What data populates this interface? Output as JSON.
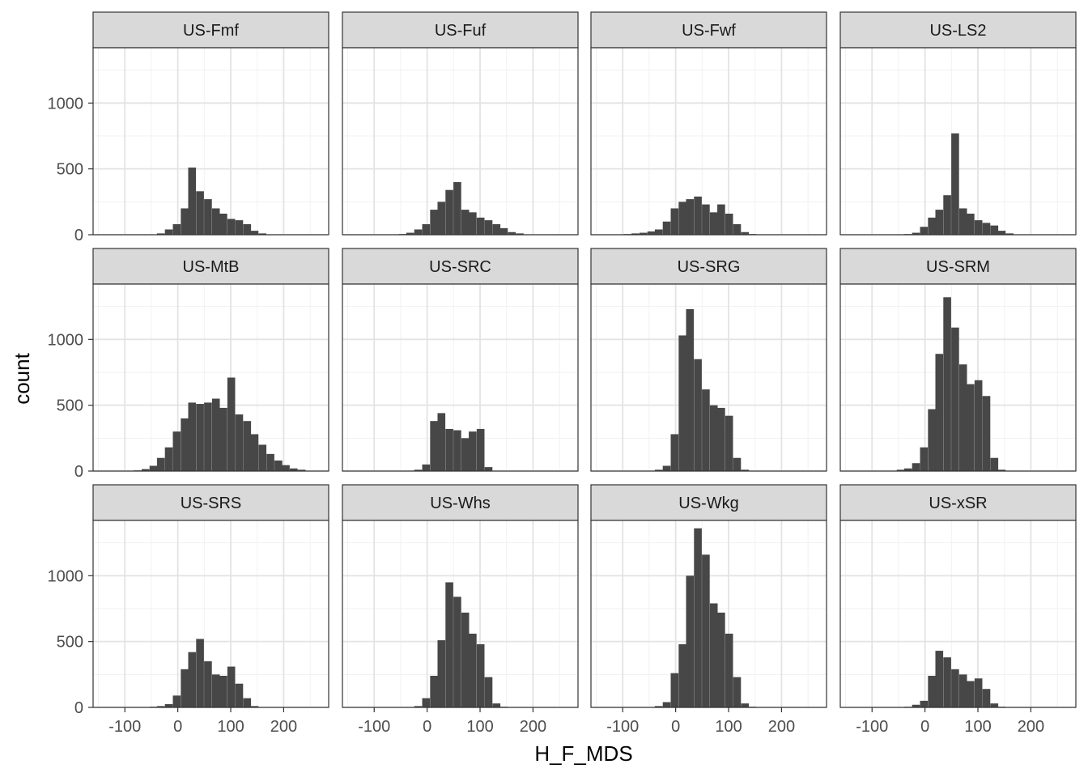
{
  "chart_data": {
    "type": "bar",
    "chart_kind": "faceted-histogram",
    "xlabel": "H_F_MDS",
    "ylabel": "count",
    "xlim": [
      -160,
      285
    ],
    "ylim": [
      0,
      1420
    ],
    "x_ticks": [
      -100,
      0,
      100,
      200
    ],
    "x_tick_labels": [
      "-100",
      "0",
      "100",
      "200"
    ],
    "y_ticks": [
      0,
      500,
      1000
    ],
    "y_tick_labels": [
      "0",
      "500",
      "1000"
    ],
    "grid": true,
    "theme": "bw",
    "bin_width": 14.7,
    "bar_color": "#474747",
    "strip_fill": "#d9d9d9",
    "panel_border": "#333333",
    "layout": {
      "rows": 3,
      "cols": 4
    },
    "facets": [
      {
        "name": "US-Fmf",
        "bins": [
          {
            "x": -32,
            "y": 10
          },
          {
            "x": -17,
            "y": 40
          },
          {
            "x": -2,
            "y": 80
          },
          {
            "x": 13,
            "y": 200
          },
          {
            "x": 27,
            "y": 510
          },
          {
            "x": 42,
            "y": 330
          },
          {
            "x": 57,
            "y": 270
          },
          {
            "x": 72,
            "y": 200
          },
          {
            "x": 86,
            "y": 160
          },
          {
            "x": 101,
            "y": 120
          },
          {
            "x": 116,
            "y": 110
          },
          {
            "x": 131,
            "y": 80
          },
          {
            "x": 145,
            "y": 30
          },
          {
            "x": 160,
            "y": 10
          }
        ]
      },
      {
        "name": "US-Fuf",
        "bins": [
          {
            "x": -46,
            "y": 5
          },
          {
            "x": -32,
            "y": 15
          },
          {
            "x": -17,
            "y": 40
          },
          {
            "x": -2,
            "y": 80
          },
          {
            "x": 13,
            "y": 190
          },
          {
            "x": 27,
            "y": 250
          },
          {
            "x": 42,
            "y": 340
          },
          {
            "x": 57,
            "y": 400
          },
          {
            "x": 72,
            "y": 190
          },
          {
            "x": 86,
            "y": 170
          },
          {
            "x": 101,
            "y": 130
          },
          {
            "x": 116,
            "y": 110
          },
          {
            "x": 131,
            "y": 80
          },
          {
            "x": 145,
            "y": 50
          },
          {
            "x": 160,
            "y": 20
          },
          {
            "x": 175,
            "y": 10
          }
        ]
      },
      {
        "name": "US-Fwf",
        "bins": [
          {
            "x": -91,
            "y": 5
          },
          {
            "x": -76,
            "y": 10
          },
          {
            "x": -61,
            "y": 15
          },
          {
            "x": -46,
            "y": 25
          },
          {
            "x": -32,
            "y": 40
          },
          {
            "x": -17,
            "y": 100
          },
          {
            "x": -2,
            "y": 200
          },
          {
            "x": 13,
            "y": 250
          },
          {
            "x": 27,
            "y": 270
          },
          {
            "x": 42,
            "y": 290
          },
          {
            "x": 57,
            "y": 230
          },
          {
            "x": 72,
            "y": 170
          },
          {
            "x": 86,
            "y": 230
          },
          {
            "x": 101,
            "y": 160
          },
          {
            "x": 116,
            "y": 80
          },
          {
            "x": 131,
            "y": 20
          },
          {
            "x": 145,
            "y": 5
          }
        ]
      },
      {
        "name": "US-LS2",
        "bins": [
          {
            "x": -32,
            "y": 5
          },
          {
            "x": -17,
            "y": 15
          },
          {
            "x": -2,
            "y": 60
          },
          {
            "x": 13,
            "y": 130
          },
          {
            "x": 27,
            "y": 190
          },
          {
            "x": 42,
            "y": 300
          },
          {
            "x": 57,
            "y": 770
          },
          {
            "x": 72,
            "y": 200
          },
          {
            "x": 86,
            "y": 160
          },
          {
            "x": 101,
            "y": 110
          },
          {
            "x": 116,
            "y": 90
          },
          {
            "x": 131,
            "y": 70
          },
          {
            "x": 145,
            "y": 30
          },
          {
            "x": 160,
            "y": 10
          }
        ]
      },
      {
        "name": "US-MtB",
        "bins": [
          {
            "x": -76,
            "y": 5
          },
          {
            "x": -61,
            "y": 15
          },
          {
            "x": -46,
            "y": 40
          },
          {
            "x": -32,
            "y": 100
          },
          {
            "x": -17,
            "y": 180
          },
          {
            "x": -2,
            "y": 300
          },
          {
            "x": 13,
            "y": 400
          },
          {
            "x": 27,
            "y": 520
          },
          {
            "x": 42,
            "y": 510
          },
          {
            "x": 57,
            "y": 520
          },
          {
            "x": 72,
            "y": 550
          },
          {
            "x": 86,
            "y": 480
          },
          {
            "x": 101,
            "y": 710
          },
          {
            "x": 116,
            "y": 430
          },
          {
            "x": 131,
            "y": 380
          },
          {
            "x": 145,
            "y": 280
          },
          {
            "x": 160,
            "y": 200
          },
          {
            "x": 175,
            "y": 130
          },
          {
            "x": 190,
            "y": 80
          },
          {
            "x": 204,
            "y": 45
          },
          {
            "x": 219,
            "y": 20
          },
          {
            "x": 234,
            "y": 10
          }
        ]
      },
      {
        "name": "US-SRC",
        "bins": [
          {
            "x": -17,
            "y": 10
          },
          {
            "x": -2,
            "y": 50
          },
          {
            "x": 13,
            "y": 380
          },
          {
            "x": 27,
            "y": 440
          },
          {
            "x": 42,
            "y": 320
          },
          {
            "x": 57,
            "y": 310
          },
          {
            "x": 72,
            "y": 250
          },
          {
            "x": 86,
            "y": 300
          },
          {
            "x": 101,
            "y": 320
          },
          {
            "x": 116,
            "y": 30
          }
        ]
      },
      {
        "name": "US-SRG",
        "bins": [
          {
            "x": -32,
            "y": 10
          },
          {
            "x": -17,
            "y": 40
          },
          {
            "x": -2,
            "y": 280
          },
          {
            "x": 13,
            "y": 1030
          },
          {
            "x": 27,
            "y": 1230
          },
          {
            "x": 42,
            "y": 850
          },
          {
            "x": 57,
            "y": 620
          },
          {
            "x": 72,
            "y": 500
          },
          {
            "x": 86,
            "y": 480
          },
          {
            "x": 101,
            "y": 420
          },
          {
            "x": 116,
            "y": 100
          },
          {
            "x": 131,
            "y": 10
          }
        ]
      },
      {
        "name": "US-SRM",
        "bins": [
          {
            "x": -46,
            "y": 10
          },
          {
            "x": -32,
            "y": 20
          },
          {
            "x": -17,
            "y": 60
          },
          {
            "x": -2,
            "y": 180
          },
          {
            "x": 13,
            "y": 470
          },
          {
            "x": 27,
            "y": 890
          },
          {
            "x": 42,
            "y": 1320
          },
          {
            "x": 57,
            "y": 1090
          },
          {
            "x": 72,
            "y": 810
          },
          {
            "x": 86,
            "y": 660
          },
          {
            "x": 101,
            "y": 690
          },
          {
            "x": 116,
            "y": 570
          },
          {
            "x": 131,
            "y": 100
          },
          {
            "x": 145,
            "y": 10
          }
        ]
      },
      {
        "name": "US-SRS",
        "bins": [
          {
            "x": -46,
            "y": 5
          },
          {
            "x": -32,
            "y": 10
          },
          {
            "x": -17,
            "y": 25
          },
          {
            "x": -2,
            "y": 90
          },
          {
            "x": 13,
            "y": 290
          },
          {
            "x": 27,
            "y": 420
          },
          {
            "x": 42,
            "y": 520
          },
          {
            "x": 57,
            "y": 350
          },
          {
            "x": 72,
            "y": 250
          },
          {
            "x": 86,
            "y": 240
          },
          {
            "x": 101,
            "y": 310
          },
          {
            "x": 116,
            "y": 180
          },
          {
            "x": 131,
            "y": 70
          },
          {
            "x": 145,
            "y": 10
          }
        ]
      },
      {
        "name": "US-Whs",
        "bins": [
          {
            "x": -17,
            "y": 10
          },
          {
            "x": -2,
            "y": 70
          },
          {
            "x": 13,
            "y": 240
          },
          {
            "x": 27,
            "y": 510
          },
          {
            "x": 42,
            "y": 950
          },
          {
            "x": 57,
            "y": 840
          },
          {
            "x": 72,
            "y": 720
          },
          {
            "x": 86,
            "y": 560
          },
          {
            "x": 101,
            "y": 480
          },
          {
            "x": 116,
            "y": 230
          },
          {
            "x": 131,
            "y": 30
          },
          {
            "x": 145,
            "y": 5
          }
        ]
      },
      {
        "name": "US-Wkg",
        "bins": [
          {
            "x": -32,
            "y": 10
          },
          {
            "x": -17,
            "y": 40
          },
          {
            "x": -2,
            "y": 260
          },
          {
            "x": 13,
            "y": 480
          },
          {
            "x": 27,
            "y": 1000
          },
          {
            "x": 42,
            "y": 1360
          },
          {
            "x": 57,
            "y": 1160
          },
          {
            "x": 72,
            "y": 790
          },
          {
            "x": 86,
            "y": 720
          },
          {
            "x": 101,
            "y": 560
          },
          {
            "x": 116,
            "y": 230
          },
          {
            "x": 131,
            "y": 30
          },
          {
            "x": 145,
            "y": 5
          }
        ]
      },
      {
        "name": "US-xSR",
        "bins": [
          {
            "x": -32,
            "y": 5
          },
          {
            "x": -17,
            "y": 20
          },
          {
            "x": -2,
            "y": 50
          },
          {
            "x": 13,
            "y": 240
          },
          {
            "x": 27,
            "y": 430
          },
          {
            "x": 42,
            "y": 380
          },
          {
            "x": 57,
            "y": 290
          },
          {
            "x": 72,
            "y": 250
          },
          {
            "x": 86,
            "y": 200
          },
          {
            "x": 101,
            "y": 220
          },
          {
            "x": 116,
            "y": 140
          },
          {
            "x": 131,
            "y": 30
          },
          {
            "x": 145,
            "y": 5
          }
        ]
      }
    ]
  }
}
